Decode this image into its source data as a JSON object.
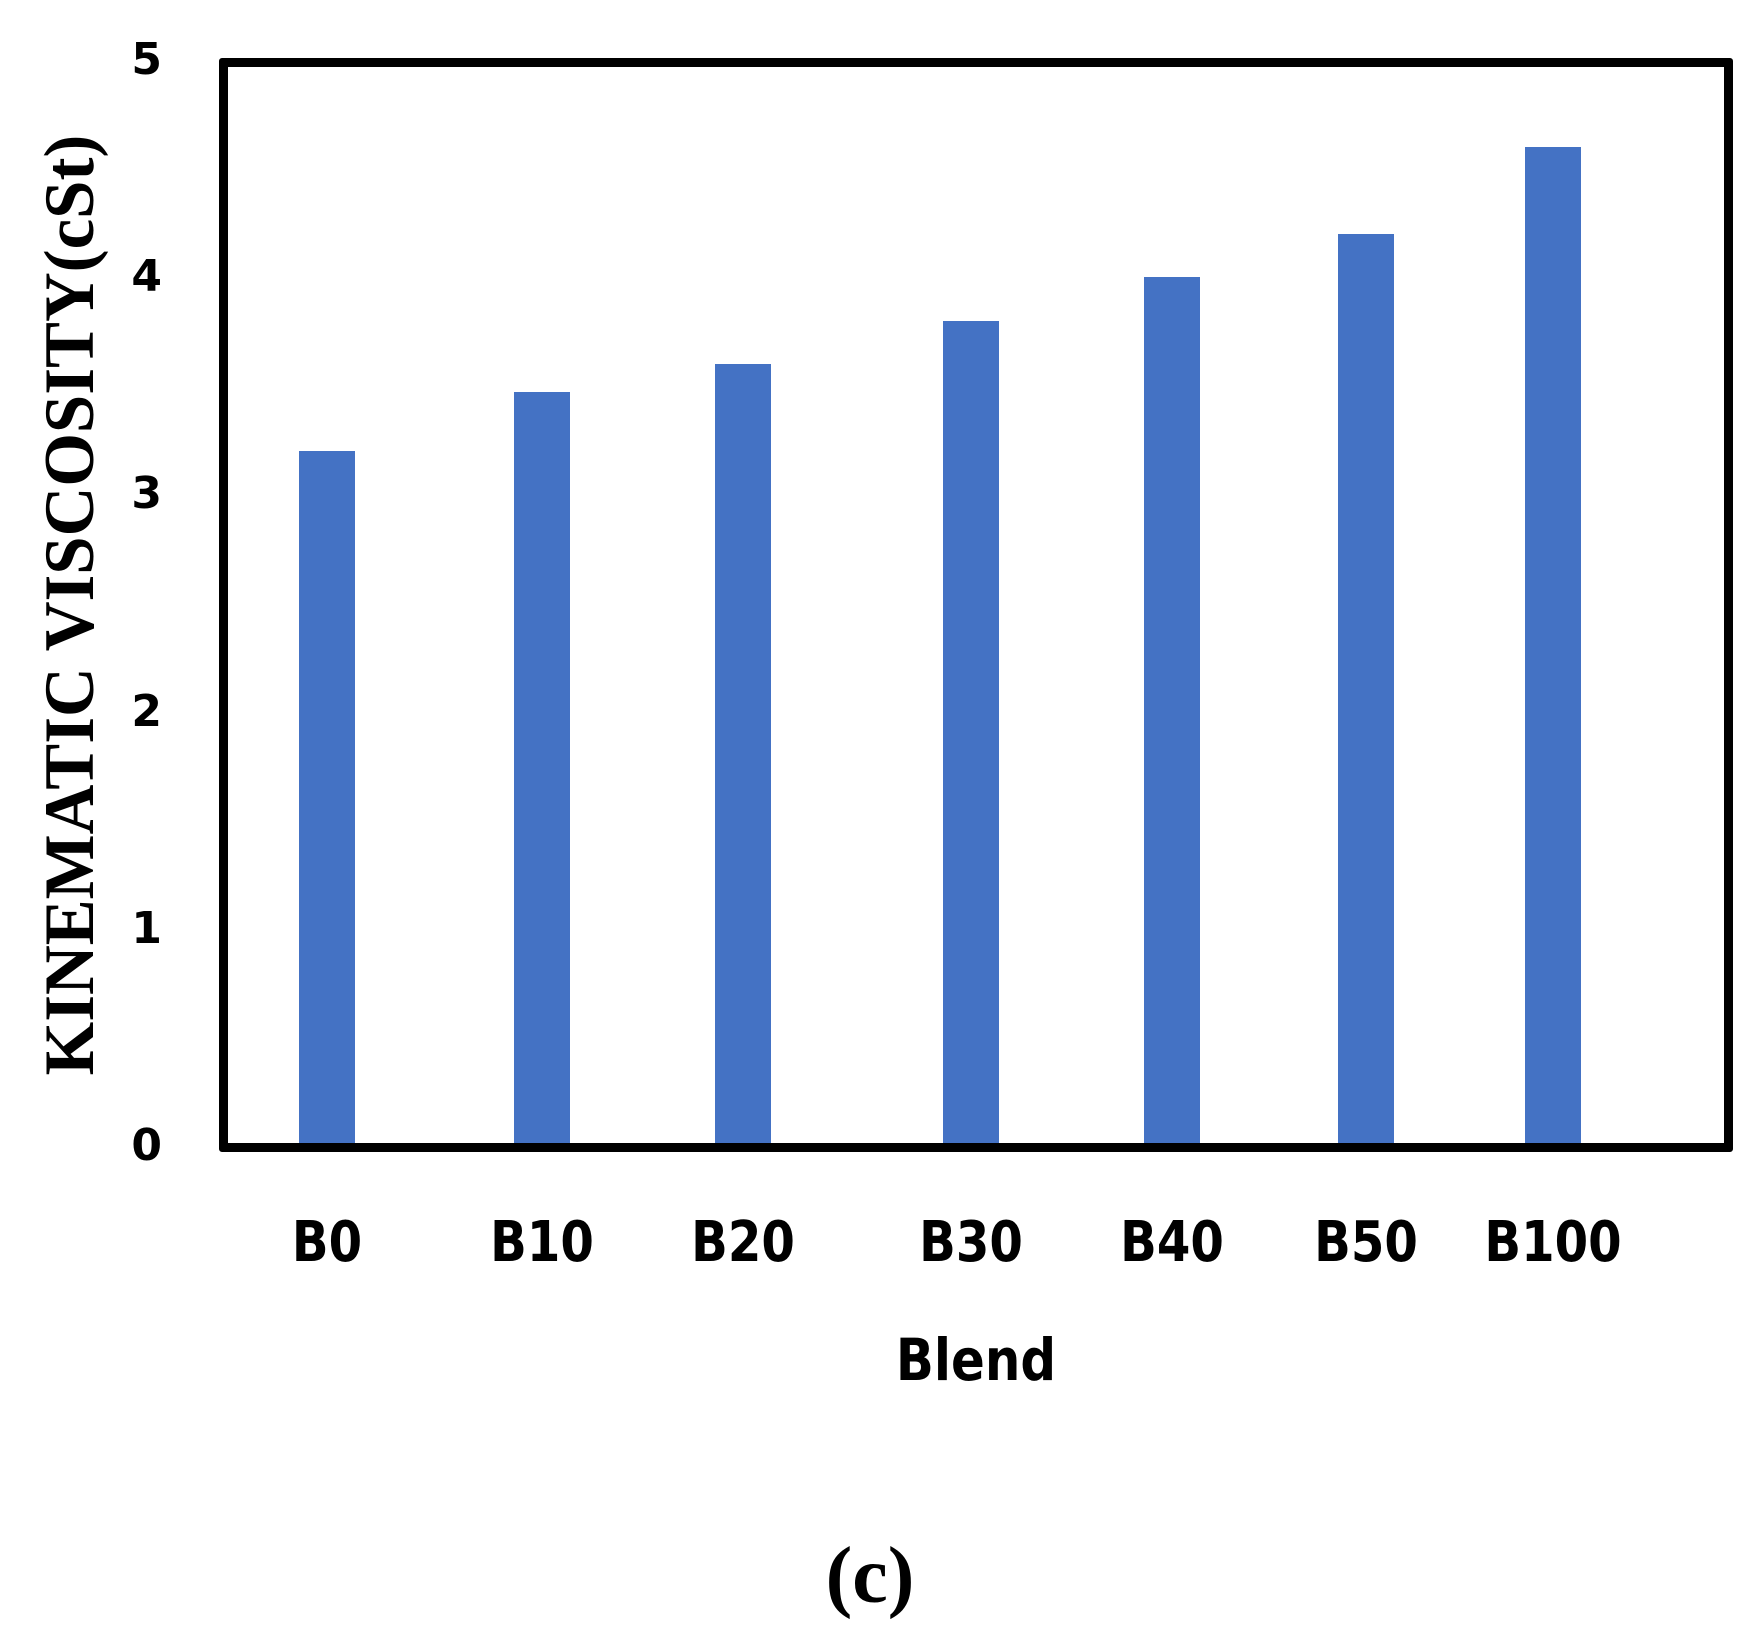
{
  "figure": {
    "caption": "(c)",
    "bar_color": "#4472C4",
    "frame_color": "#000000"
  },
  "axes": {
    "ylabel": "KINEMATIC VISCOSITY(cSt)",
    "xlabel": "Blend",
    "yticks": [
      "0",
      "1",
      "2",
      "3",
      "4",
      "5"
    ],
    "xticks": [
      "B0",
      "B10",
      "B20",
      "B30",
      "B40",
      "B50",
      "B100"
    ]
  },
  "chart_data": {
    "type": "bar",
    "title": "",
    "xlabel": "Blend",
    "ylabel": "KINEMATIC VISCOSITY(cSt)",
    "categories": [
      "B0",
      "B10",
      "B20",
      "B30",
      "B40",
      "B50",
      "B100"
    ],
    "values": [
      3.2,
      3.47,
      3.6,
      3.8,
      4.0,
      4.2,
      4.6
    ],
    "ylim": [
      0,
      5
    ],
    "yticks": [
      0,
      1,
      2,
      3,
      4,
      5
    ],
    "grid": false,
    "legend": null,
    "annotation": "(c)"
  }
}
